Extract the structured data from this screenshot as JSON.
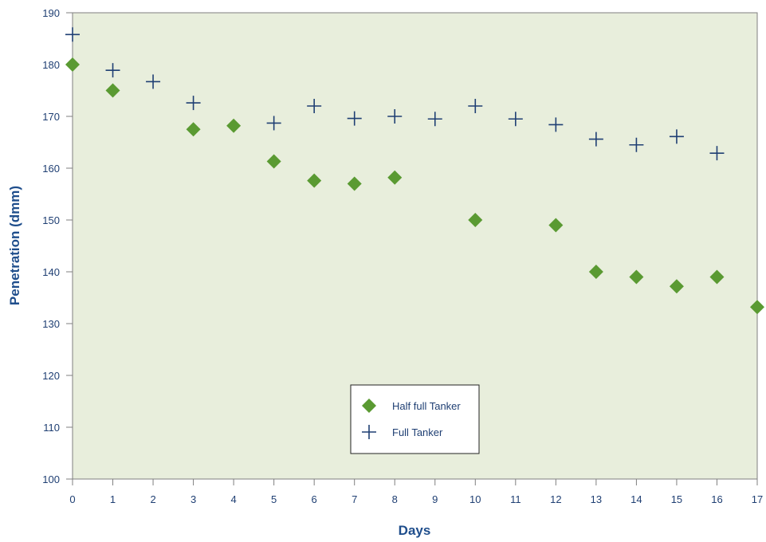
{
  "chart_data": {
    "type": "scatter",
    "title": "",
    "xlabel": "Days",
    "ylabel": "Penetration (dmm)",
    "xlim": [
      0,
      17
    ],
    "ylim": [
      100,
      190
    ],
    "xticks": [
      0,
      1,
      2,
      3,
      4,
      5,
      6,
      7,
      8,
      9,
      10,
      11,
      12,
      13,
      14,
      15,
      16,
      17
    ],
    "yticks": [
      100,
      110,
      120,
      130,
      140,
      150,
      160,
      170,
      180,
      190
    ],
    "grid": false,
    "legend_position": "bottom-center",
    "colors": {
      "plot_background": "#e8eedc",
      "axis": "#7f7f7f",
      "half_full": "#5a9a32",
      "full": "#1f3f73",
      "text": "#1f3f73",
      "title_text": "#1f4e8c"
    },
    "series": [
      {
        "name": "Half full Tanker",
        "marker": "diamond",
        "x": [
          0,
          1,
          3,
          4,
          5,
          6,
          7,
          8,
          10,
          12,
          13,
          14,
          15,
          16,
          17
        ],
        "y": [
          180,
          175,
          167.5,
          168.2,
          161.3,
          157.6,
          157,
          158.2,
          150,
          149,
          140,
          139,
          137.2,
          139,
          133.2
        ]
      },
      {
        "name": "Full Tanker",
        "marker": "plus",
        "x": [
          0,
          1,
          2,
          3,
          5,
          6,
          7,
          8,
          9,
          10,
          11,
          12,
          13,
          14,
          15,
          16
        ],
        "y": [
          185.8,
          178.9,
          176.7,
          172.6,
          168.7,
          172,
          169.6,
          170,
          169.5,
          172,
          169.5,
          168.4,
          165.6,
          164.5,
          166.1,
          162.9
        ]
      }
    ]
  }
}
